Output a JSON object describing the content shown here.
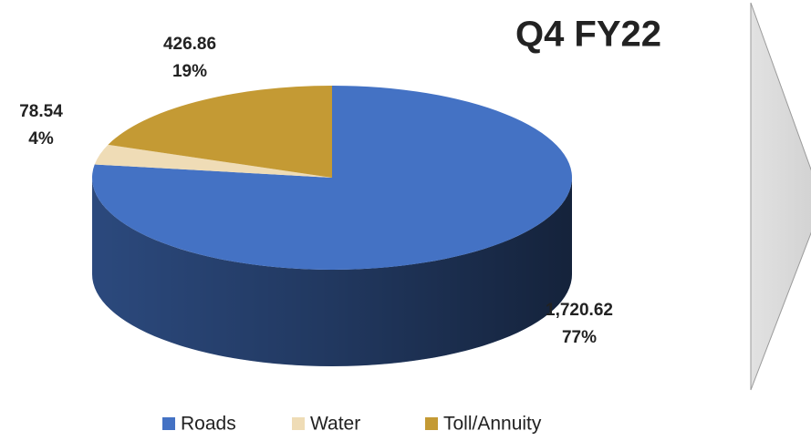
{
  "chart_data": {
    "type": "pie3d",
    "title": "Q4 FY22",
    "categories": [
      "Roads",
      "Water",
      "Toll/Annuity"
    ],
    "values": [
      1720.62,
      78.54,
      426.86
    ],
    "value_labels": [
      "1,720.62",
      "78.54",
      "426.86"
    ],
    "percent_labels": [
      "77%",
      "4%",
      "19%"
    ],
    "colors": [
      "#4472c4",
      "#efdcb6",
      "#c49a34"
    ],
    "legend": "bottom"
  }
}
